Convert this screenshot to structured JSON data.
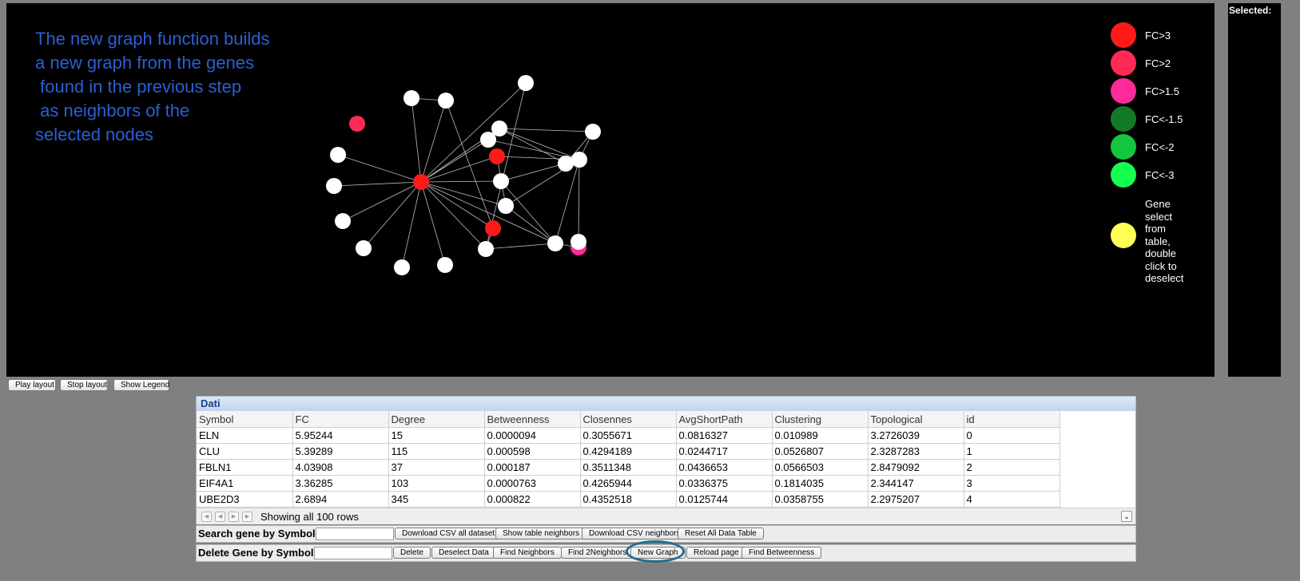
{
  "annotation": {
    "text": "The new graph function builds\na new graph from the genes\n found in the previous step\n as neighbors of the\nselected nodes"
  },
  "selected_panel": {
    "title": "Selected:"
  },
  "legend": {
    "items": [
      {
        "label": "FC>3",
        "color": "#ff1a1a"
      },
      {
        "label": "FC>2",
        "color": "#ff2a55"
      },
      {
        "label": "FC>1.5",
        "color": "#ff2a9a"
      },
      {
        "label": "FC<-1.5",
        "color": "#127a26"
      },
      {
        "label": "FC<-2",
        "color": "#14c640"
      },
      {
        "label": "FC<-3",
        "color": "#14ff50"
      },
      {
        "label": "Gene select from table, double click to deselect",
        "color": "#ffff55"
      }
    ]
  },
  "layout_buttons": {
    "play": "Play layout",
    "stop": "Stop layout",
    "legend": "Show Legend"
  },
  "table": {
    "caption": "Dati",
    "columns": [
      "Symbol",
      "FC",
      "Degree",
      "Betweenness",
      "Closennes",
      "AvgShortPath",
      "Clustering",
      "Topological",
      "id"
    ],
    "rows": [
      [
        "ELN",
        "5.95244",
        "15",
        "0.0000094",
        "0.3055671",
        "0.0816327",
        "0.010989",
        "3.2726039",
        "0"
      ],
      [
        "CLU",
        "5.39289",
        "115",
        "0.000598",
        "0.4294189",
        "0.0244717",
        "0.0526807",
        "2.3287283",
        "1"
      ],
      [
        "FBLN1",
        "4.03908",
        "37",
        "0.000187",
        "0.3511348",
        "0.0436653",
        "0.0566503",
        "2.8479092",
        "2"
      ],
      [
        "EIF4A1",
        "3.36285",
        "103",
        "0.0000763",
        "0.4265944",
        "0.0336375",
        "0.1814035",
        "2.344147",
        "3"
      ],
      [
        "UBE2D3",
        "2.6894",
        "345",
        "0.000822",
        "0.4352518",
        "0.0125744",
        "0.0358755",
        "2.2975207",
        "4"
      ]
    ],
    "pager_text": "Showing all 100 rows"
  },
  "search_bar": {
    "label": "Search gene by Symbol:",
    "value": "",
    "buttons": [
      "Download CSV all dataset",
      "Show table neighbors",
      "Download CSV neighbors",
      "Reset All Data Table"
    ]
  },
  "delete_bar": {
    "label": "Delete Gene by Symbol:",
    "value": "",
    "buttons": [
      "Delete",
      "Deselect Data",
      "Find Neighbors",
      "Find 2Neighbors",
      "New Graph",
      "Reload page",
      "Find Betweenness"
    ]
  },
  "graph": {
    "node_colors": {
      "default": "#ffffff"
    },
    "nodes": [
      {
        "id": "n0",
        "color": "#ff1a1a"
      },
      {
        "id": "n1",
        "color": "#ff2a55"
      },
      {
        "id": "n2",
        "color": "#ffffff"
      },
      {
        "id": "n3",
        "color": "#ffffff"
      },
      {
        "id": "n4",
        "color": "#ffffff"
      },
      {
        "id": "n5",
        "color": "#ffffff"
      },
      {
        "id": "n6",
        "color": "#ffffff"
      },
      {
        "id": "n7",
        "color": "#ffffff"
      },
      {
        "id": "n8",
        "color": "#ffffff"
      },
      {
        "id": "n9",
        "color": "#ffffff"
      },
      {
        "id": "n10",
        "color": "#ffffff"
      },
      {
        "id": "n11",
        "color": "#ffffff"
      },
      {
        "id": "n12",
        "color": "#ffffff"
      },
      {
        "id": "n13",
        "color": "#ff1a1a"
      },
      {
        "id": "n14",
        "color": "#ffffff"
      },
      {
        "id": "n15",
        "color": "#ff1a1a"
      },
      {
        "id": "n16",
        "color": "#ffffff"
      },
      {
        "id": "n17",
        "color": "#ffffff"
      },
      {
        "id": "n18",
        "color": "#ff2a9a"
      },
      {
        "id": "n19",
        "color": "#ffffff"
      },
      {
        "id": "n20",
        "color": "#ffffff"
      },
      {
        "id": "n21",
        "color": "#ffffff"
      },
      {
        "id": "n22",
        "color": "#ffffff"
      },
      {
        "id": "n23",
        "color": "#ffffff"
      }
    ],
    "edges": [
      [
        "n0",
        "n2"
      ],
      [
        "n0",
        "n3"
      ],
      [
        "n0",
        "n4"
      ],
      [
        "n0",
        "n5"
      ],
      [
        "n0",
        "n6"
      ],
      [
        "n0",
        "n7"
      ],
      [
        "n0",
        "n8"
      ],
      [
        "n0",
        "n9"
      ],
      [
        "n0",
        "n10"
      ],
      [
        "n0",
        "n11"
      ],
      [
        "n0",
        "n12"
      ],
      [
        "n0",
        "n13"
      ],
      [
        "n0",
        "n14"
      ],
      [
        "n0",
        "n15"
      ],
      [
        "n0",
        "n16"
      ],
      [
        "n0",
        "n17"
      ],
      [
        "n0",
        "n19"
      ],
      [
        "n11",
        "n20"
      ],
      [
        "n20",
        "n21"
      ],
      [
        "n20",
        "n22"
      ],
      [
        "n20",
        "n23"
      ],
      [
        "n20",
        "n12"
      ],
      [
        "n20",
        "n14"
      ],
      [
        "n20",
        "n13"
      ],
      [
        "n20",
        "n16"
      ],
      [
        "n20",
        "n17"
      ],
      [
        "n21",
        "n23"
      ],
      [
        "n13",
        "n16"
      ],
      [
        "n16",
        "n17"
      ],
      [
        "n17",
        "n18"
      ],
      [
        "n17",
        "n19"
      ],
      [
        "n15",
        "n19"
      ],
      [
        "n15",
        "n9"
      ],
      [
        "n19",
        "n10"
      ],
      [
        "n9",
        "n8"
      ],
      [
        "n14",
        "n17"
      ],
      [
        "n12",
        "n21"
      ],
      [
        "n12",
        "n23"
      ]
    ]
  }
}
